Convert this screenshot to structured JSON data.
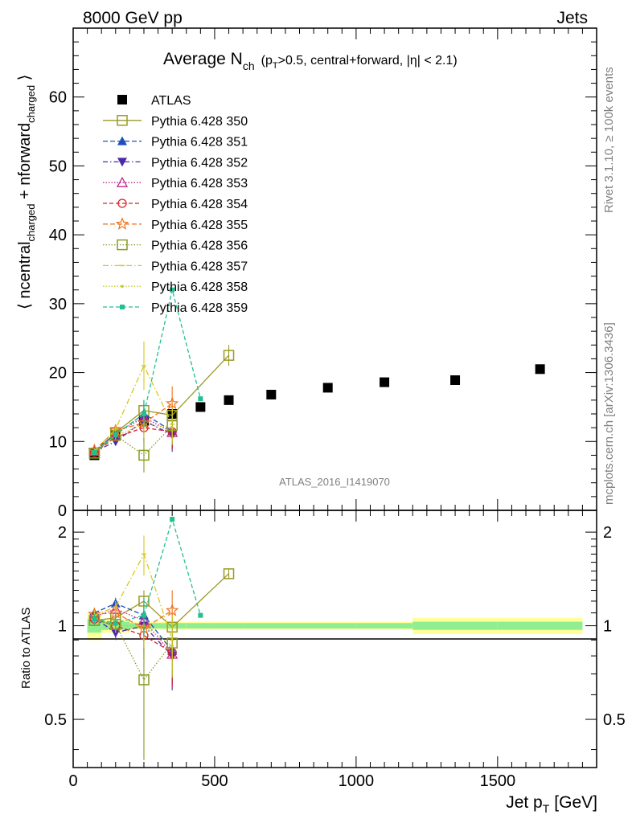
{
  "header": {
    "left": "8000 GeV pp",
    "right": "Jets"
  },
  "side": {
    "rivet": "Rivet 3.1.10, ≥ 100k events",
    "mcplots": "mcplots.cern.ch [arXiv:1306.3436]"
  },
  "chart_data": [
    {
      "type": "scatter",
      "panel": "main",
      "title": "Average N",
      "title_sub": "ch",
      "title_cond": "(p",
      "title_cond_sub": "T",
      "title_cond_rest": ">0.5, central+forward, |η| < 2.1)",
      "ylabel_parts": [
        "⟨ n",
        "central",
        "charged",
        " + n",
        "forward",
        "charged",
        " ⟩"
      ],
      "watermark": "ATLAS_2016_I1419070",
      "xlim": [
        0,
        1850
      ],
      "ylim": [
        0,
        70
      ],
      "y_ticks": [
        0,
        10,
        20,
        30,
        40,
        50,
        60
      ],
      "y_tick_labels": [
        "0",
        "10",
        "20",
        "30",
        "40",
        "50",
        "60"
      ],
      "legend_position": "top-left",
      "series": [
        {
          "name": "ATLAS",
          "color": "#000000",
          "marker": "square-filled",
          "dash": "none",
          "x": [
            75,
            150,
            250,
            350,
            450,
            550,
            700,
            900,
            1100,
            1350,
            1650
          ],
          "y": [
            8.0,
            10.8,
            13.0,
            14.0,
            15.0,
            16.0,
            16.8,
            17.8,
            18.6,
            18.9,
            20.5
          ],
          "err": [
            0.4,
            0.4,
            0.5,
            0.5,
            0.5,
            0.5,
            0.5,
            0.5,
            0.5,
            0.6,
            0.6
          ]
        },
        {
          "name": "Pythia 6.428 350",
          "color": "#9a9a25",
          "marker": "square-open",
          "dash": "solid",
          "x": [
            75,
            150,
            250,
            350,
            550
          ],
          "y": [
            8.3,
            11.3,
            14.5,
            13.8,
            22.5
          ],
          "err": [
            0.4,
            0.6,
            1.5,
            1.5,
            1.5
          ]
        },
        {
          "name": "Pythia 6.428 351",
          "color": "#1f4fbf",
          "marker": "triangle-up-filled",
          "dash": "6,3",
          "x": [
            75,
            150,
            250,
            350
          ],
          "y": [
            8.8,
            11.0,
            14.0,
            11.5
          ],
          "err": [
            0.3,
            0.5,
            2.0,
            2.5
          ]
        },
        {
          "name": "Pythia 6.428 352",
          "color": "#4a2aa8",
          "marker": "triangle-down-filled",
          "dash": "6,3,1.5,3",
          "x": [
            75,
            150,
            250,
            350
          ],
          "y": [
            8.5,
            10.0,
            13.0,
            11.0
          ],
          "err": [
            0.3,
            0.5,
            2.0,
            2.5
          ]
        },
        {
          "name": "Pythia 6.428 353",
          "color": "#c02a8a",
          "marker": "triangle-up-open",
          "dash": "1.5,2",
          "x": [
            75,
            150,
            250,
            350
          ],
          "y": [
            8.6,
            11.2,
            13.5,
            11.3
          ],
          "err": [
            0.3,
            0.5,
            2.0,
            2.5
          ]
        },
        {
          "name": "Pythia 6.428 354",
          "color": "#d81f2a",
          "marker": "circle-open",
          "dash": "5,3",
          "x": [
            75,
            150,
            250,
            350
          ],
          "y": [
            8.4,
            10.6,
            12.0,
            11.4
          ],
          "err": [
            0.3,
            0.5,
            2.0,
            2.5
          ]
        },
        {
          "name": "Pythia 6.428 355",
          "color": "#ee7420",
          "marker": "star-open",
          "dash": "6,3",
          "x": [
            75,
            150,
            250,
            350
          ],
          "y": [
            8.7,
            11.6,
            12.7,
            15.5
          ],
          "err": [
            0.3,
            0.5,
            2.0,
            2.5
          ]
        },
        {
          "name": "Pythia 6.428 356",
          "color": "#8a9a25",
          "marker": "square-open",
          "dash": "1.5,2",
          "x": [
            75,
            150,
            250,
            350
          ],
          "y": [
            8.3,
            10.9,
            8.0,
            12.3
          ],
          "err": [
            0.3,
            0.5,
            2.5,
            2.5
          ]
        },
        {
          "name": "Pythia 6.428 357",
          "color": "#d8c820",
          "marker": "line-only",
          "dash": "7,3,1.5,3",
          "x": [
            75,
            150,
            250,
            350
          ],
          "y": [
            8.6,
            11.8,
            21.0,
            12.5
          ],
          "err": [
            0.3,
            0.5,
            3.5,
            2.5
          ]
        },
        {
          "name": "Pythia 6.428 358",
          "color": "#c4cc30",
          "marker": "dot",
          "dash": "1.5,2",
          "x": [
            75,
            150,
            250,
            350
          ],
          "y": [
            8.5,
            10.8,
            12.5,
            12.0
          ],
          "err": [
            0.3,
            0.5,
            2.0,
            2.5
          ]
        },
        {
          "name": "Pythia 6.428 359",
          "color": "#20c090",
          "marker": "square-small",
          "dash": "5,3",
          "x": [
            75,
            150,
            250,
            350,
            450
          ],
          "y": [
            8.4,
            11.0,
            14.0,
            32.0,
            16.2
          ],
          "err": [
            0.3,
            0.5,
            2.0,
            0,
            0
          ]
        }
      ]
    },
    {
      "type": "scatter",
      "panel": "ratio",
      "ylabel": "Ratio to ATLAS",
      "xlabel_main": "Jet p",
      "xlabel_sub": "T",
      "xlabel_unit": "[GeV]",
      "xlim": [
        0,
        1850
      ],
      "ylim": [
        0.35,
        2.35
      ],
      "x_ticks": [
        0,
        500,
        1000,
        1500
      ],
      "x_tick_labels": [
        "0",
        "500",
        "1000",
        "1500"
      ],
      "y_ticks": [
        0.5,
        1,
        2
      ],
      "y_tick_labels": [
        "0.5",
        "1",
        "2"
      ],
      "uncertainty_bands": [
        {
          "x0": 50,
          "x1": 100,
          "stat": [
            0.95,
            1.05
          ],
          "total": [
            0.9,
            1.1
          ]
        },
        {
          "x0": 100,
          "x1": 200,
          "stat": [
            0.97,
            1.03
          ],
          "total": [
            0.95,
            1.05
          ]
        },
        {
          "x0": 200,
          "x1": 300,
          "stat": [
            0.98,
            1.02
          ],
          "total": [
            0.97,
            1.03
          ]
        },
        {
          "x0": 300,
          "x1": 400,
          "stat": [
            0.98,
            1.02
          ],
          "total": [
            0.97,
            1.03
          ]
        },
        {
          "x0": 400,
          "x1": 500,
          "stat": [
            0.98,
            1.02
          ],
          "total": [
            0.97,
            1.03
          ]
        },
        {
          "x0": 500,
          "x1": 600,
          "stat": [
            0.98,
            1.02
          ],
          "total": [
            0.97,
            1.03
          ]
        },
        {
          "x0": 600,
          "x1": 800,
          "stat": [
            0.98,
            1.02
          ],
          "total": [
            0.97,
            1.03
          ]
        },
        {
          "x0": 800,
          "x1": 1000,
          "stat": [
            0.98,
            1.02
          ],
          "total": [
            0.97,
            1.03
          ]
        },
        {
          "x0": 1000,
          "x1": 1200,
          "stat": [
            0.98,
            1.02
          ],
          "total": [
            0.97,
            1.03
          ]
        },
        {
          "x0": 1200,
          "x1": 1500,
          "stat": [
            0.97,
            1.03
          ],
          "total": [
            0.94,
            1.06
          ]
        },
        {
          "x0": 1500,
          "x1": 1800,
          "stat": [
            0.97,
            1.03
          ],
          "total": [
            0.94,
            1.06
          ]
        }
      ],
      "series": [
        {
          "name": "Pythia 6.428 350",
          "color": "#9a9a25",
          "marker": "square-open",
          "dash": "solid",
          "x": [
            75,
            150,
            250,
            350,
            550
          ],
          "y": [
            1.04,
            1.06,
            1.2,
            0.99,
            1.47
          ],
          "err": [
            0.04,
            0.05,
            0.1,
            0.1,
            0.05
          ]
        },
        {
          "name": "Pythia 6.428 351",
          "color": "#1f4fbf",
          "marker": "triangle-up-filled",
          "dash": "6,3",
          "x": [
            75,
            150,
            250,
            350
          ],
          "y": [
            1.1,
            1.18,
            1.08,
            0.83
          ],
          "err": [
            0.04,
            0.05,
            0.15,
            0.18
          ]
        },
        {
          "name": "Pythia 6.428 352",
          "color": "#4a2aa8",
          "marker": "triangle-down-filled",
          "dash": "6,3,1.5,3",
          "x": [
            75,
            150,
            250,
            350
          ],
          "y": [
            1.06,
            0.95,
            1.0,
            0.8
          ],
          "err": [
            0.04,
            0.05,
            0.15,
            0.18
          ]
        },
        {
          "name": "Pythia 6.428 353",
          "color": "#c02a8a",
          "marker": "triangle-up-open",
          "dash": "1.5,2",
          "x": [
            75,
            150,
            250,
            350
          ],
          "y": [
            1.07,
            1.13,
            1.04,
            0.81
          ],
          "err": [
            0.04,
            0.05,
            0.15,
            0.18
          ]
        },
        {
          "name": "Pythia 6.428 354",
          "color": "#d81f2a",
          "marker": "circle-open",
          "dash": "5,3",
          "x": [
            75,
            150,
            250,
            350
          ],
          "y": [
            1.05,
            1.0,
            0.93,
            0.82
          ],
          "err": [
            0.04,
            0.05,
            0.15,
            0.18
          ]
        },
        {
          "name": "Pythia 6.428 355",
          "color": "#ee7420",
          "marker": "star-open",
          "dash": "6,3",
          "x": [
            75,
            150,
            250,
            350
          ],
          "y": [
            1.09,
            1.1,
            0.98,
            1.12
          ],
          "err": [
            0.04,
            0.05,
            0.15,
            0.18
          ]
        },
        {
          "name": "Pythia 6.428 356",
          "color": "#8a9a25",
          "marker": "square-open",
          "dash": "1.5,2",
          "x": [
            75,
            150,
            250,
            350
          ],
          "y": [
            1.04,
            1.01,
            0.67,
            0.88
          ],
          "err": [
            0.04,
            0.05,
            0.3,
            0.18
          ]
        },
        {
          "name": "Pythia 6.428 357",
          "color": "#d8c820",
          "marker": "line-only",
          "dash": "7,3,1.5,3",
          "x": [
            75,
            150,
            250,
            350
          ],
          "y": [
            1.08,
            1.15,
            1.7,
            0.9
          ],
          "err": [
            0.04,
            0.05,
            0.25,
            0.18
          ]
        },
        {
          "name": "Pythia 6.428 358",
          "color": "#c4cc30",
          "marker": "dot",
          "dash": "1.5,2",
          "x": [
            75,
            150,
            250,
            350
          ],
          "y": [
            1.06,
            1.0,
            1.0,
            0.86
          ],
          "err": [
            0.04,
            0.05,
            0.15,
            0.18
          ]
        },
        {
          "name": "Pythia 6.428 359",
          "color": "#20c090",
          "marker": "square-small",
          "dash": "5,3",
          "x": [
            75,
            150,
            250,
            350,
            450
          ],
          "y": [
            1.05,
            1.02,
            1.08,
            2.2,
            1.08
          ],
          "err": [
            0.04,
            0.05,
            0.15,
            0,
            0
          ]
        }
      ]
    }
  ]
}
